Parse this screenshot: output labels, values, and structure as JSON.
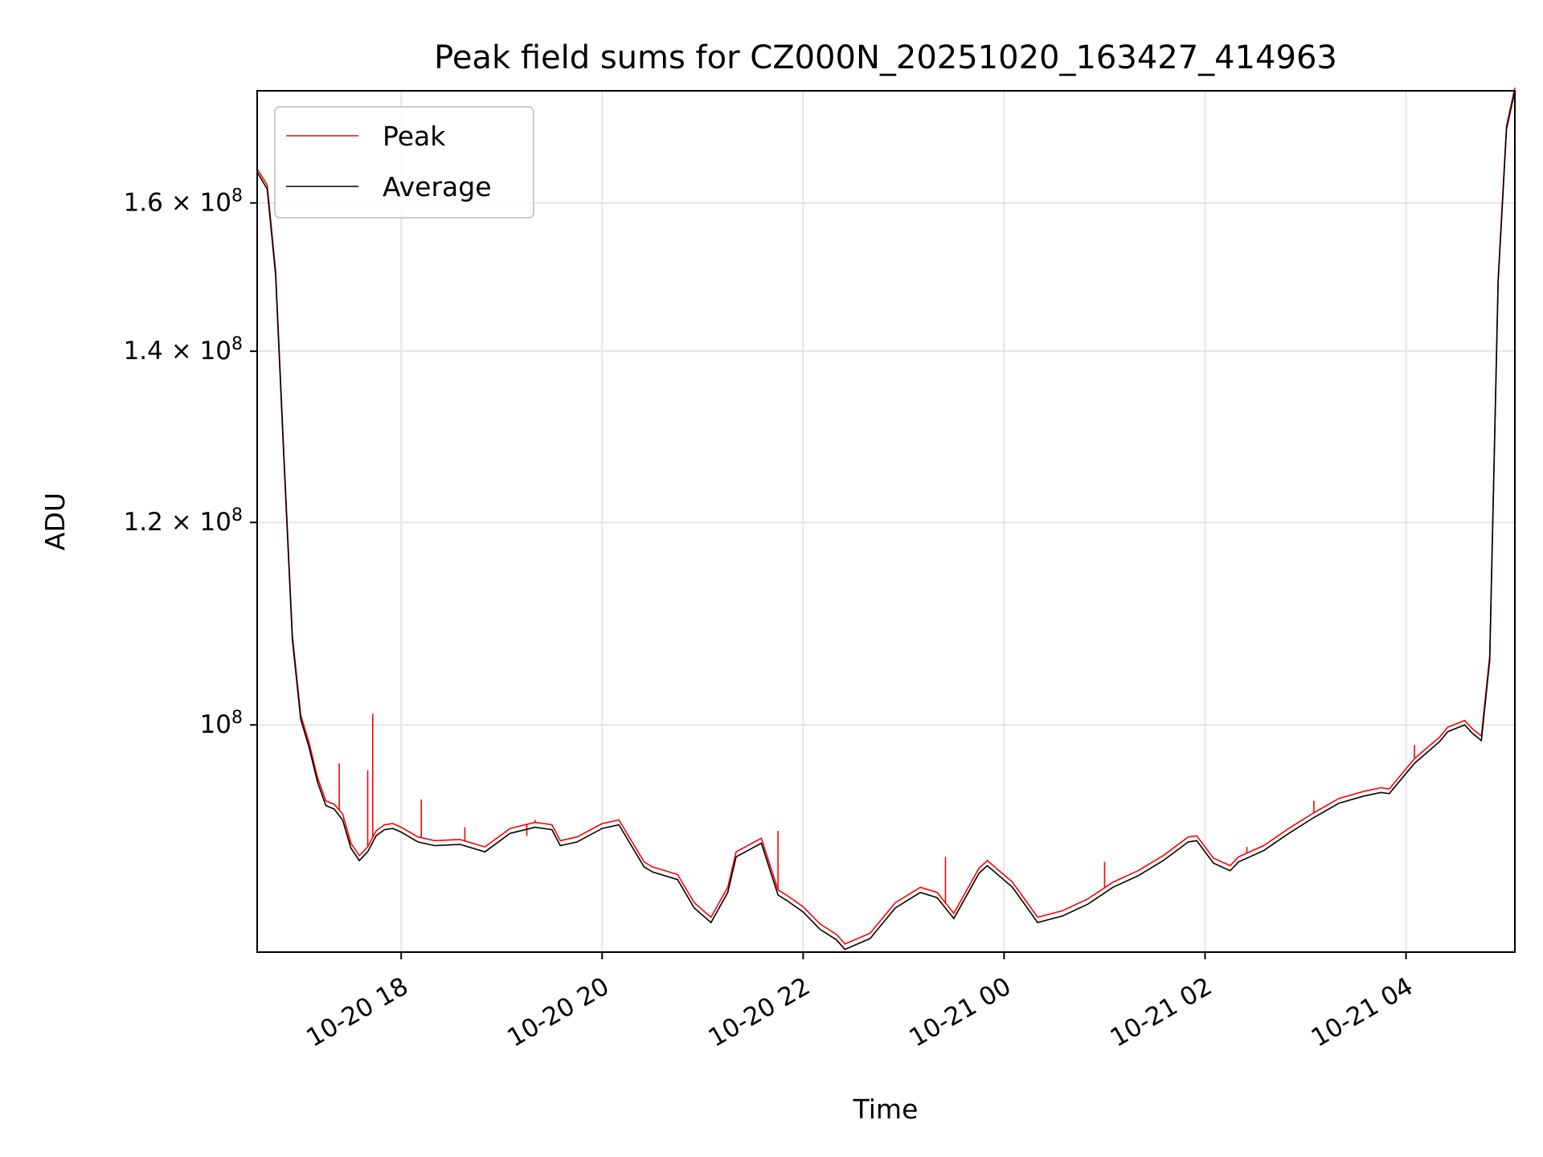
{
  "chart_data": {
    "type": "line",
    "title": "Peak field sums for CZ000N_20251020_163427_414963",
    "xlabel": "Time",
    "ylabel": "ADU",
    "y_scale": "log",
    "grid": true,
    "legend_position": "top-left",
    "xlim": [
      "2025-10-20 16:34",
      "2025-10-21 05:05"
    ],
    "ylim": [
      81500000,
      177000000
    ],
    "x_ticks": [
      {
        "value": "2025-10-20 18:00",
        "label": "10-20 18"
      },
      {
        "value": "2025-10-20 20:00",
        "label": "10-20 20"
      },
      {
        "value": "2025-10-20 22:00",
        "label": "10-20 22"
      },
      {
        "value": "2025-10-21 00:00",
        "label": "10-21 00"
      },
      {
        "value": "2025-10-21 02:00",
        "label": "10-21 02"
      },
      {
        "value": "2025-10-21 04:00",
        "label": "10-21 04"
      }
    ],
    "y_ticks": [
      {
        "value": 100000000,
        "mantissa": "",
        "exponent": "8",
        "base": "10"
      },
      {
        "value": 120000000,
        "mantissa": "1.2",
        "exponent": "8",
        "base": "10"
      },
      {
        "value": 140000000,
        "mantissa": "1.4",
        "exponent": "8",
        "base": "10"
      },
      {
        "value": 160000000,
        "mantissa": "1.6",
        "exponent": "8",
        "base": "10"
      }
    ],
    "series": [
      {
        "name": "Average",
        "color": "#000000",
        "x": [
          "2025-10-20 16:34",
          "2025-10-20 16:40",
          "2025-10-20 16:45",
          "2025-10-20 16:50",
          "2025-10-20 16:55",
          "2025-10-20 17:00",
          "2025-10-20 17:05",
          "2025-10-20 17:10",
          "2025-10-20 17:15",
          "2025-10-20 17:20",
          "2025-10-20 17:25",
          "2025-10-20 17:30",
          "2025-10-20 17:35",
          "2025-10-20 17:40",
          "2025-10-20 17:45",
          "2025-10-20 17:50",
          "2025-10-20 17:55",
          "2025-10-20 18:00",
          "2025-10-20 18:10",
          "2025-10-20 18:20",
          "2025-10-20 18:35",
          "2025-10-20 18:50",
          "2025-10-20 19:05",
          "2025-10-20 19:20",
          "2025-10-20 19:30",
          "2025-10-20 19:35",
          "2025-10-20 19:45",
          "2025-10-20 20:00",
          "2025-10-20 20:10",
          "2025-10-20 20:25",
          "2025-10-20 20:30",
          "2025-10-20 20:45",
          "2025-10-20 20:55",
          "2025-10-20 21:05",
          "2025-10-20 21:15",
          "2025-10-20 21:20",
          "2025-10-20 21:35",
          "2025-10-20 21:45",
          "2025-10-20 21:50",
          "2025-10-20 22:00",
          "2025-10-20 22:10",
          "2025-10-20 22:20",
          "2025-10-20 22:25",
          "2025-10-20 22:40",
          "2025-10-20 22:55",
          "2025-10-20 23:10",
          "2025-10-20 23:20",
          "2025-10-20 23:30",
          "2025-10-20 23:45",
          "2025-10-20 23:50",
          "2025-10-21 00:05",
          "2025-10-21 00:15",
          "2025-10-21 00:20",
          "2025-10-21 00:35",
          "2025-10-21 00:50",
          "2025-10-21 01:05",
          "2025-10-21 01:20",
          "2025-10-21 01:35",
          "2025-10-21 01:50",
          "2025-10-21 01:55",
          "2025-10-21 02:05",
          "2025-10-21 02:15",
          "2025-10-21 02:20",
          "2025-10-21 02:35",
          "2025-10-21 02:50",
          "2025-10-21 03:05",
          "2025-10-21 03:20",
          "2025-10-21 03:35",
          "2025-10-21 03:45",
          "2025-10-21 03:50",
          "2025-10-21 04:05",
          "2025-10-21 04:20",
          "2025-10-21 04:25",
          "2025-10-21 04:35",
          "2025-10-21 04:40",
          "2025-10-21 04:45",
          "2025-10-21 04:50",
          "2025-10-21 04:55",
          "2025-10-21 05:00",
          "2025-10-21 05:05"
        ],
        "values": [
          164500000,
          162000000,
          150000000,
          127000000,
          108000000,
          100500000,
          98000000,
          95000000,
          93000000,
          92700000,
          91800000,
          89500000,
          88500000,
          89200000,
          90500000,
          91000000,
          91100000,
          90800000,
          90000000,
          89700000,
          89800000,
          89200000,
          90700000,
          91200000,
          91000000,
          89700000,
          90000000,
          91100000,
          91400000,
          88000000,
          87600000,
          87000000,
          84800000,
          83700000,
          86000000,
          88800000,
          89900000,
          85800000,
          85400000,
          84500000,
          83200000,
          82400000,
          81700000,
          82500000,
          84800000,
          86000000,
          85600000,
          84000000,
          87500000,
          88100000,
          86400000,
          84600000,
          83700000,
          84200000,
          85100000,
          86400000,
          87300000,
          88500000,
          90000000,
          90100000,
          88300000,
          87700000,
          88400000,
          89300000,
          90700000,
          92000000,
          93200000,
          93800000,
          94100000,
          94000000,
          96600000,
          98500000,
          99400000,
          100000000,
          99200000,
          98600000,
          106000000,
          149000000,
          171000000,
          177000000
        ]
      },
      {
        "name": "Peak",
        "color": "#ff0000",
        "x": [
          "2025-10-20 16:34",
          "2025-10-20 16:40",
          "2025-10-20 16:45",
          "2025-10-20 16:50",
          "2025-10-20 16:55",
          "2025-10-20 17:00",
          "2025-10-20 17:05",
          "2025-10-20 17:10",
          "2025-10-20 17:15",
          "2025-10-20 17:20",
          "2025-10-20 17:25",
          "2025-10-20 17:30",
          "2025-10-20 17:35",
          "2025-10-20 17:40",
          "2025-10-20 17:45",
          "2025-10-20 17:50",
          "2025-10-20 17:55",
          "2025-10-20 18:00",
          "2025-10-20 18:10",
          "2025-10-20 18:20",
          "2025-10-20 18:35",
          "2025-10-20 18:50",
          "2025-10-20 19:05",
          "2025-10-20 19:20",
          "2025-10-20 19:30",
          "2025-10-20 19:35",
          "2025-10-20 19:45",
          "2025-10-20 20:00",
          "2025-10-20 20:10",
          "2025-10-20 20:25",
          "2025-10-20 20:30",
          "2025-10-20 20:45",
          "2025-10-20 20:55",
          "2025-10-20 21:05",
          "2025-10-20 21:15",
          "2025-10-20 21:20",
          "2025-10-20 21:35",
          "2025-10-20 21:45",
          "2025-10-20 21:50",
          "2025-10-20 22:00",
          "2025-10-20 22:10",
          "2025-10-20 22:20",
          "2025-10-20 22:25",
          "2025-10-20 22:40",
          "2025-10-20 22:55",
          "2025-10-20 23:10",
          "2025-10-20 23:20",
          "2025-10-20 23:30",
          "2025-10-20 23:45",
          "2025-10-20 23:50",
          "2025-10-21 00:05",
          "2025-10-21 00:15",
          "2025-10-21 00:20",
          "2025-10-21 00:35",
          "2025-10-21 00:50",
          "2025-10-21 01:05",
          "2025-10-21 01:20",
          "2025-10-21 01:35",
          "2025-10-21 01:50",
          "2025-10-21 01:55",
          "2025-10-21 02:05",
          "2025-10-21 02:15",
          "2025-10-21 02:20",
          "2025-10-21 02:35",
          "2025-10-21 02:50",
          "2025-10-21 03:05",
          "2025-10-21 03:20",
          "2025-10-21 03:35",
          "2025-10-21 03:45",
          "2025-10-21 03:50",
          "2025-10-21 04:05",
          "2025-10-21 04:20",
          "2025-10-21 04:25",
          "2025-10-21 04:35",
          "2025-10-21 04:40",
          "2025-10-21 04:45",
          "2025-10-21 04:50",
          "2025-10-21 04:55",
          "2025-10-21 05:00",
          "2025-10-21 05:05"
        ],
        "values": [
          165000000,
          162600000,
          150600000,
          127500000,
          108400000,
          100900000,
          98400000,
          95400000,
          93400000,
          93100000,
          92300000,
          89900000,
          88900000,
          89600000,
          90900000,
          91400000,
          91500000,
          91200000,
          90400000,
          90100000,
          90200000,
          89600000,
          91100000,
          91600000,
          91400000,
          90100000,
          90400000,
          91500000,
          91800000,
          88400000,
          88000000,
          87400000,
          85200000,
          84100000,
          86400000,
          89200000,
          90300000,
          86200000,
          85800000,
          84900000,
          83600000,
          82800000,
          82100000,
          82900000,
          85200000,
          86400000,
          86000000,
          84400000,
          87900000,
          88500000,
          86800000,
          85000000,
          84100000,
          84600000,
          85500000,
          86800000,
          87700000,
          88900000,
          90400000,
          90500000,
          88700000,
          88100000,
          88800000,
          89700000,
          91100000,
          92400000,
          93600000,
          94200000,
          94500000,
          94400000,
          97000000,
          98900000,
          99800000,
          100400000,
          99600000,
          99000000,
          106400000,
          149500000,
          171500000,
          177500000
        ]
      }
    ],
    "spikes": [
      {
        "x": "2025-10-20 17:23",
        "value": 96600000
      },
      {
        "x": "2025-10-20 17:40",
        "value": 96000000
      },
      {
        "x": "2025-10-20 17:43",
        "value": 101000000
      },
      {
        "x": "2025-10-20 18:12",
        "value": 93500000
      },
      {
        "x": "2025-10-20 18:38",
        "value": 91200000
      },
      {
        "x": "2025-10-20 19:20",
        "value": 91800000
      },
      {
        "x": "2025-10-20 19:15",
        "value": 90500000
      },
      {
        "x": "2025-10-20 21:45",
        "value": 90900000
      },
      {
        "x": "2025-10-20 23:25",
        "value": 88800000
      },
      {
        "x": "2025-10-21 01:00",
        "value": 88400000
      },
      {
        "x": "2025-10-21 02:25",
        "value": 89600000
      },
      {
        "x": "2025-10-21 03:05",
        "value": 93400000
      },
      {
        "x": "2025-10-21 04:05",
        "value": 98200000
      }
    ]
  }
}
